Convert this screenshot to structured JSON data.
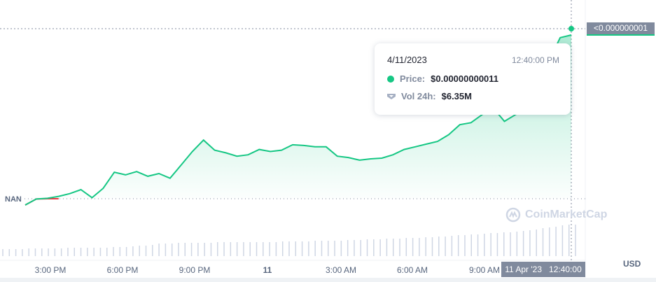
{
  "chart_data": {
    "type": "line",
    "title": "",
    "currency": "USD",
    "baseline_label": "NAN",
    "current_price_label": "<0.000000001",
    "x_ticks": [
      "3:00 PM",
      "6:00 PM",
      "9:00 PM",
      "11",
      "3:00 AM",
      "6:00 AM",
      "9:00 AM"
    ],
    "price_index": [
      0,
      9,
      10,
      13,
      17,
      23,
      11,
      25,
      49,
      45,
      50,
      43,
      47,
      40,
      60,
      80,
      97,
      82,
      78,
      73,
      75,
      83,
      80,
      82,
      90,
      89,
      87,
      87,
      73,
      71,
      67,
      69,
      70,
      75,
      83,
      87,
      91,
      95,
      105,
      120,
      123,
      135,
      145,
      125,
      135,
      145,
      155,
      215,
      250,
      254
    ],
    "volume_index": [
      10,
      10,
      10,
      10,
      11,
      11,
      11,
      11,
      11,
      11,
      12,
      12,
      12,
      12,
      12,
      12,
      12,
      13,
      13,
      13,
      14,
      15,
      15,
      16,
      18,
      18,
      18,
      19,
      19,
      19,
      19,
      19,
      19,
      20,
      20,
      20,
      20,
      20,
      20,
      20,
      20,
      20,
      20,
      21,
      21,
      21,
      21,
      21,
      22,
      22,
      22,
      22,
      22,
      23,
      23,
      23,
      24,
      24,
      24,
      25,
      25,
      25,
      26,
      26,
      26,
      27,
      27,
      28,
      28,
      29,
      30,
      30,
      31,
      31,
      32,
      33,
      33,
      34,
      34,
      35,
      36,
      37,
      38,
      40,
      41,
      42,
      44,
      45,
      45
    ],
    "grid": false,
    "legend": "none"
  },
  "tooltip": {
    "date": "4/11/2023",
    "time": "12:40:00 PM",
    "price_label": "Price:",
    "price_value": "$0.00000000011",
    "vol_label": "Vol 24h:",
    "vol_value": "$6.35M"
  },
  "crosshair_time": "11 Apr '23   12:40:00",
  "watermark": "CoinMarketCap",
  "colors": {
    "up": "#16c784",
    "down": "#ea3943",
    "volume": "#cfd6e4"
  }
}
